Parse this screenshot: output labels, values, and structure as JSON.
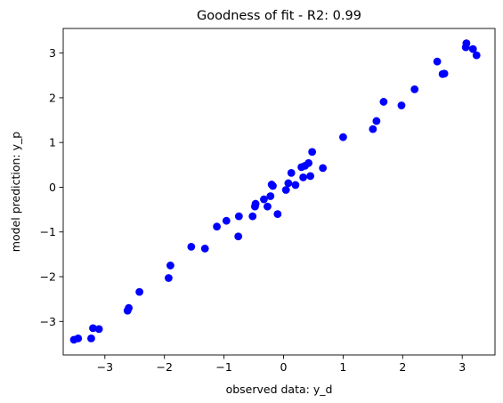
{
  "chart_data": {
    "type": "scatter",
    "title": "Goodness of fit -  R2: 0.99",
    "xlabel": "observed data: y_d",
    "ylabel": "model prediction: y_p",
    "xlim": [
      -3.7,
      3.55
    ],
    "ylim": [
      -3.75,
      3.55
    ],
    "x_ticks": [
      -3,
      -2,
      -1,
      0,
      1,
      2,
      3
    ],
    "y_ticks": [
      -3,
      -2,
      -1,
      0,
      1,
      2,
      3
    ],
    "x_tick_labels": [
      "−3",
      "−2",
      "−1",
      "0",
      "1",
      "2",
      "3"
    ],
    "y_tick_labels": [
      "−3",
      "−2",
      "−1",
      "0",
      "1",
      "2",
      "3"
    ],
    "grid": false,
    "marker_color": "#0000ff",
    "points": [
      {
        "x": -3.52,
        "y": -3.41
      },
      {
        "x": -3.45,
        "y": -3.38
      },
      {
        "x": -3.23,
        "y": -3.38
      },
      {
        "x": -3.2,
        "y": -3.15
      },
      {
        "x": -3.1,
        "y": -3.17
      },
      {
        "x": -2.62,
        "y": -2.76
      },
      {
        "x": -2.6,
        "y": -2.7
      },
      {
        "x": -2.42,
        "y": -2.34
      },
      {
        "x": -1.93,
        "y": -2.03
      },
      {
        "x": -1.9,
        "y": -1.75
      },
      {
        "x": -1.55,
        "y": -1.33
      },
      {
        "x": -1.32,
        "y": -1.37
      },
      {
        "x": -1.12,
        "y": -0.88
      },
      {
        "x": -0.96,
        "y": -0.75
      },
      {
        "x": -0.76,
        "y": -1.1
      },
      {
        "x": -0.75,
        "y": -0.65
      },
      {
        "x": -0.52,
        "y": -0.65
      },
      {
        "x": -0.48,
        "y": -0.43
      },
      {
        "x": -0.47,
        "y": -0.37
      },
      {
        "x": -0.33,
        "y": -0.27
      },
      {
        "x": -0.27,
        "y": -0.43
      },
      {
        "x": -0.22,
        "y": -0.2
      },
      {
        "x": -0.2,
        "y": 0.06
      },
      {
        "x": -0.18,
        "y": 0.03
      },
      {
        "x": -0.1,
        "y": -0.6
      },
      {
        "x": 0.04,
        "y": -0.06
      },
      {
        "x": 0.08,
        "y": 0.09
      },
      {
        "x": 0.13,
        "y": 0.32
      },
      {
        "x": 0.2,
        "y": 0.05
      },
      {
        "x": 0.3,
        "y": 0.45
      },
      {
        "x": 0.33,
        "y": 0.22
      },
      {
        "x": 0.36,
        "y": 0.48
      },
      {
        "x": 0.42,
        "y": 0.54
      },
      {
        "x": 0.45,
        "y": 0.25
      },
      {
        "x": 0.48,
        "y": 0.79
      },
      {
        "x": 0.66,
        "y": 0.43
      },
      {
        "x": 1.0,
        "y": 1.12
      },
      {
        "x": 1.5,
        "y": 1.3
      },
      {
        "x": 1.56,
        "y": 1.48
      },
      {
        "x": 1.68,
        "y": 1.91
      },
      {
        "x": 1.98,
        "y": 1.83
      },
      {
        "x": 2.2,
        "y": 2.19
      },
      {
        "x": 2.58,
        "y": 2.81
      },
      {
        "x": 2.67,
        "y": 2.53
      },
      {
        "x": 2.7,
        "y": 2.54
      },
      {
        "x": 3.06,
        "y": 3.13
      },
      {
        "x": 3.07,
        "y": 3.22
      },
      {
        "x": 3.18,
        "y": 3.09
      },
      {
        "x": 3.24,
        "y": 2.95
      }
    ]
  }
}
